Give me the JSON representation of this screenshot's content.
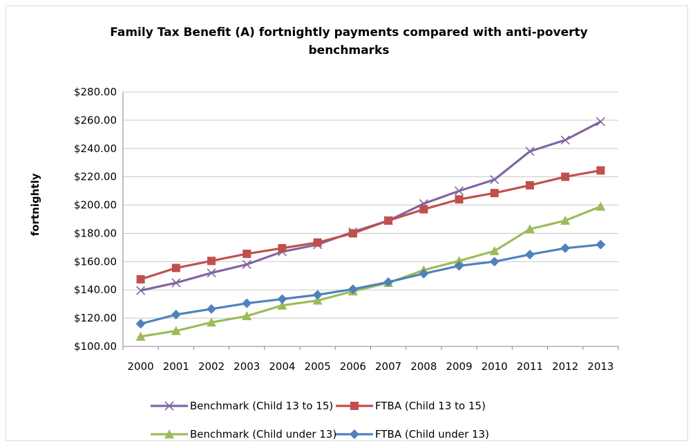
{
  "chart_data": {
    "type": "line",
    "title": "Family Tax Benefit (A) fortnightly payments compared with anti-poverty benchmarks",
    "title_lines": [
      "Family Tax Benefit (A) fortnightly payments compared with anti-poverty",
      "benchmarks"
    ],
    "xlabel": "",
    "ylabel": "fortnightly",
    "ylim": [
      100,
      280
    ],
    "ytick_step": 20,
    "ytick_labels": [
      "$100.00",
      "$120.00",
      "$140.00",
      "$160.00",
      "$180.00",
      "$200.00",
      "$220.00",
      "$240.00",
      "$260.00",
      "$280.00"
    ],
    "categories": [
      "2000",
      "2001",
      "2002",
      "2003",
      "2004",
      "2005",
      "2006",
      "2007",
      "2008",
      "2009",
      "2010",
      "2011",
      "2012",
      "2013"
    ],
    "grid": true,
    "legend_position": "bottom",
    "series": [
      {
        "name": "Benchmark (Child 13 to 15)",
        "color": "#8064a2",
        "marker": "x",
        "values": [
          139.5,
          145,
          152,
          158,
          167,
          172,
          181,
          189,
          201,
          210,
          218,
          238,
          246,
          259
        ]
      },
      {
        "name": "FTBA (Child 13 to 15)",
        "color": "#c0504d",
        "marker": "square",
        "values": [
          147.5,
          155.5,
          160.5,
          165.5,
          169.5,
          173.5,
          180,
          189,
          197,
          204,
          208.5,
          214,
          220,
          224.5
        ]
      },
      {
        "name": "Benchmark (Child under 13)",
        "color": "#9bbb59",
        "marker": "triangle",
        "values": [
          107,
          111,
          117,
          121.5,
          129,
          132.5,
          139,
          145,
          154,
          160.5,
          167.5,
          183,
          189,
          199
        ]
      },
      {
        "name": "FTBA (Child under 13)",
        "color": "#4f81bd",
        "marker": "diamond",
        "values": [
          116,
          122.5,
          126.5,
          130.5,
          133.5,
          136.5,
          140.5,
          145.5,
          151.5,
          157,
          160,
          165,
          169.5,
          172
        ]
      }
    ]
  }
}
